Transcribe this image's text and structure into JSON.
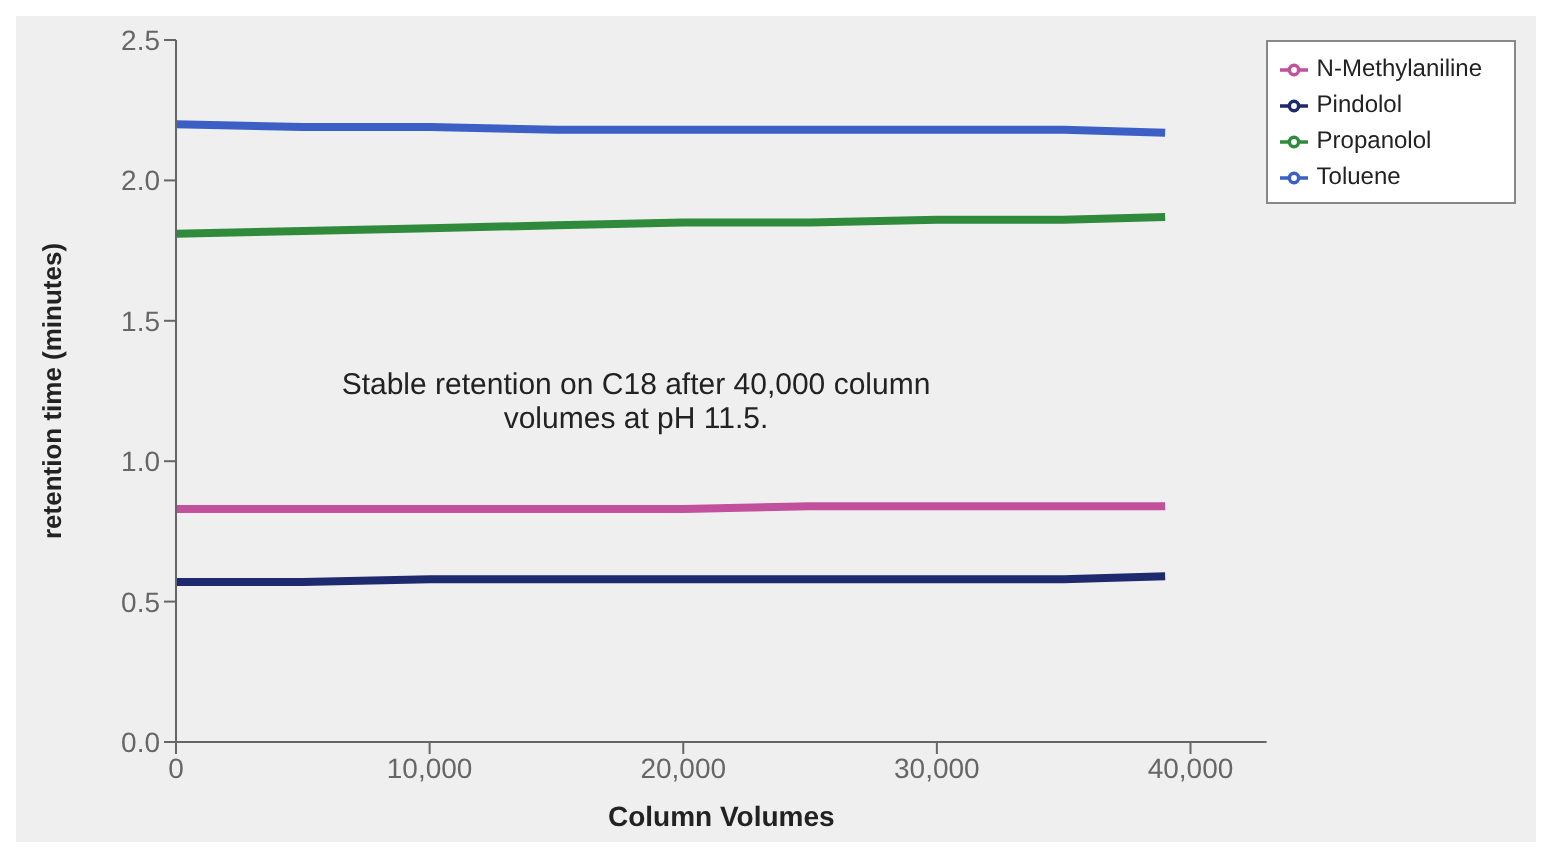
{
  "chart_data": {
    "type": "line",
    "xlabel": "Column Volumes",
    "ylabel": "retention time (minutes)",
    "x": [
      0,
      5000,
      10000,
      15000,
      20000,
      25000,
      30000,
      35000,
      39000
    ],
    "series": [
      {
        "name": "Pindolol",
        "color": "#1f2a6e",
        "values": [
          0.57,
          0.57,
          0.58,
          0.58,
          0.58,
          0.58,
          0.58,
          0.58,
          0.59
        ]
      },
      {
        "name": "N-Methylaniline",
        "color": "#c2509c",
        "values": [
          0.83,
          0.83,
          0.83,
          0.83,
          0.83,
          0.84,
          0.84,
          0.84,
          0.84
        ]
      },
      {
        "name": "Propanolol",
        "color": "#2f8a3c",
        "values": [
          1.81,
          1.82,
          1.83,
          1.84,
          1.85,
          1.85,
          1.86,
          1.86,
          1.87
        ]
      },
      {
        "name": "Toluene",
        "color": "#3b5fc4",
        "values": [
          2.2,
          2.19,
          2.19,
          2.18,
          2.18,
          2.18,
          2.18,
          2.18,
          2.17
        ]
      }
    ],
    "xlim": [
      0,
      43000
    ],
    "xticks": [
      0,
      {
        "value": 10000,
        "label": "10,000"
      },
      {
        "value": 20000,
        "label": "20,000"
      },
      {
        "value": 30000,
        "label": "30,000"
      },
      {
        "value": 40000,
        "label": "40,000"
      }
    ],
    "ylim": [
      0,
      2.5
    ],
    "yticks": [
      {
        "value": 0,
        "label": "0.0"
      },
      {
        "value": 0.5,
        "label": "0.5"
      },
      {
        "value": 1,
        "label": "1.0"
      },
      {
        "value": 1.5,
        "label": "1.5"
      },
      {
        "value": 2,
        "label": "2.0"
      },
      {
        "value": 2.5,
        "label": "2.5"
      }
    ],
    "grid": false,
    "legend": "top right",
    "marker": "none",
    "line_style": "solid",
    "annotations": [
      "Stable retention on C18 after 40,000 column volumes at pH 11.5."
    ]
  }
}
